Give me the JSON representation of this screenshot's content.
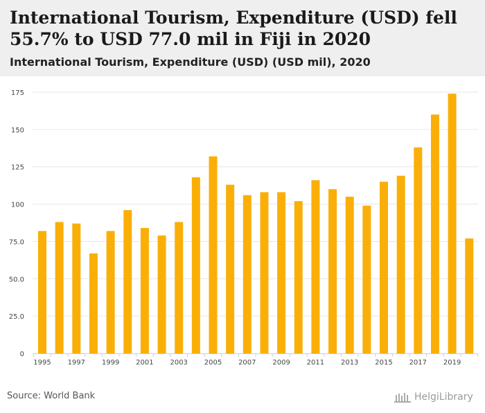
{
  "header": {
    "title": "International Tourism, Expenditure (USD) fell 55.7% to USD 77.0 mil in Fiji in 2020",
    "subtitle": "International Tourism, Expenditure (USD) (USD mil), 2020"
  },
  "footer": {
    "source": "Source: World Bank",
    "logo": "HelgiLibrary"
  },
  "colors": {
    "bar": "#FAAF08",
    "grid": "#e6e6e6",
    "axis": "#cfcfcf",
    "header_bg": "#efefef"
  },
  "chart_data": {
    "type": "bar",
    "title": "International Tourism, Expenditure (USD) (USD mil), 2020",
    "xlabel": "",
    "ylabel": "",
    "ylim": [
      0,
      175
    ],
    "yticks": [
      "0",
      "25.0",
      "50.0",
      "75.0",
      "100",
      "125",
      "150",
      "175"
    ],
    "ytick_values": [
      0,
      25,
      50,
      75,
      100,
      125,
      150,
      175
    ],
    "categories": [
      "1995",
      "1996",
      "1997",
      "1998",
      "1999",
      "2000",
      "2001",
      "2002",
      "2003",
      "2004",
      "2005",
      "2006",
      "2007",
      "2008",
      "2009",
      "2010",
      "2011",
      "2012",
      "2013",
      "2014",
      "2015",
      "2016",
      "2017",
      "2018",
      "2019",
      "2020"
    ],
    "xtick_labels": [
      "1995",
      "1997",
      "1999",
      "2001",
      "2003",
      "2005",
      "2007",
      "2009",
      "2011",
      "2013",
      "2015",
      "2017",
      "2019"
    ],
    "values": [
      82,
      88,
      87,
      67,
      82,
      96,
      84,
      79,
      88,
      118,
      132,
      113,
      106,
      108,
      108,
      102,
      116,
      110,
      105,
      99,
      115,
      119,
      138,
      160,
      174,
      77
    ],
    "grid": true
  }
}
